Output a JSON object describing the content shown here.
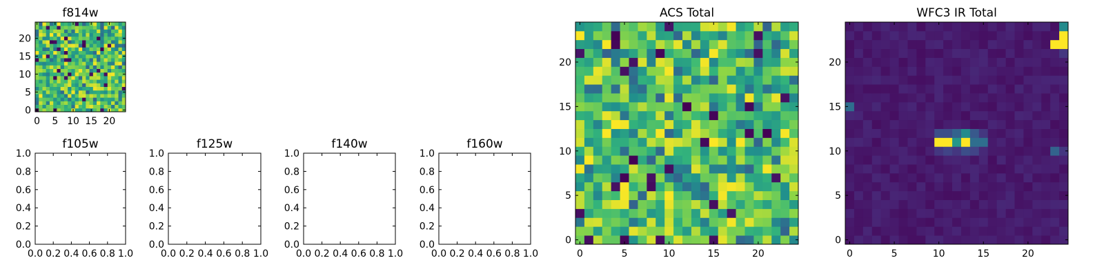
{
  "chart_data": [
    {
      "type": "heatmap",
      "title": "f814w",
      "colormap": "viridis",
      "grid": false,
      "xlim": [
        -0.5,
        24.5
      ],
      "ylim": [
        -0.5,
        24.5
      ],
      "xticks": [
        0,
        5,
        10,
        15,
        20
      ],
      "yticks": [
        0,
        5,
        10,
        15,
        20
      ],
      "xtick_labels": [
        "0",
        "5",
        "10",
        "15",
        "20"
      ],
      "ytick_labels": [
        "0",
        "5",
        "10",
        "15",
        "20"
      ],
      "grid_shape": [
        25,
        25
      ],
      "values_description": "25x25 pixel intensities, noisy and approximately uniform (mostly green-yellow, a few dark pixels)"
    },
    {
      "type": "empty",
      "title": "f105w",
      "xlim": [
        0,
        1
      ],
      "ylim": [
        0,
        1
      ],
      "xtick_labels": [
        "0.0",
        "0.2",
        "0.4",
        "0.6",
        "0.8",
        "1.0"
      ],
      "ytick_labels": [
        "0.0",
        "0.2",
        "0.4",
        "0.6",
        "0.8",
        "1.0"
      ]
    },
    {
      "type": "empty",
      "title": "f125w",
      "xlim": [
        0,
        1
      ],
      "ylim": [
        0,
        1
      ],
      "xtick_labels": [
        "0.0",
        "0.2",
        "0.4",
        "0.6",
        "0.8",
        "1.0"
      ],
      "ytick_labels": [
        "0.0",
        "0.2",
        "0.4",
        "0.6",
        "0.8",
        "1.0"
      ]
    },
    {
      "type": "empty",
      "title": "f140w",
      "xlim": [
        0,
        1
      ],
      "ylim": [
        0,
        1
      ],
      "xtick_labels": [
        "0.0",
        "0.2",
        "0.4",
        "0.6",
        "0.8",
        "1.0"
      ],
      "ytick_labels": [
        "0.0",
        "0.2",
        "0.4",
        "0.6",
        "0.8",
        "1.0"
      ]
    },
    {
      "type": "empty",
      "title": "f160w",
      "xlim": [
        0,
        1
      ],
      "ylim": [
        0,
        1
      ],
      "xtick_labels": [
        "0.0",
        "0.2",
        "0.4",
        "0.6",
        "0.8",
        "1.0"
      ],
      "ytick_labels": [
        "0.0",
        "0.2",
        "0.4",
        "0.6",
        "0.8",
        "1.0"
      ]
    },
    {
      "type": "heatmap",
      "title": "ACS Total",
      "colormap": "viridis",
      "grid": false,
      "xlim": [
        -0.5,
        24.5
      ],
      "ylim": [
        -0.5,
        24.5
      ],
      "xticks": [
        0,
        5,
        10,
        15,
        20
      ],
      "yticks": [
        0,
        5,
        10,
        15,
        20
      ],
      "xtick_labels": [
        "0",
        "5",
        "10",
        "15",
        "20"
      ],
      "ytick_labels": [
        "0",
        "5",
        "10",
        "15",
        "20"
      ],
      "grid_shape": [
        25,
        25
      ],
      "values_description": "25x25 pixel intensities, noisy and approximately uniform (mostly green-yellow, scattered dark pixels)"
    },
    {
      "type": "heatmap",
      "title": "WFC3 IR Total",
      "colormap": "viridis",
      "grid": false,
      "xlim": [
        -0.5,
        24.5
      ],
      "ylim": [
        -0.5,
        24.5
      ],
      "xticks": [
        0,
        5,
        10,
        15,
        20
      ],
      "yticks": [
        0,
        5,
        10,
        15,
        20
      ],
      "xtick_labels": [
        "0",
        "5",
        "10",
        "15",
        "20"
      ],
      "ytick_labels": [
        "0",
        "5",
        "10",
        "15",
        "20"
      ],
      "grid_shape": [
        25,
        25
      ],
      "background_level": 0.05,
      "features": [
        {
          "rows": [
            12
          ],
          "cols": [
            10,
            11,
            12,
            13,
            14,
            15
          ],
          "levels": [
            0.3,
            0.3,
            0.4,
            0.6,
            0.35,
            0.2
          ]
        },
        {
          "rows": [
            11
          ],
          "cols": [
            10,
            11,
            12,
            13,
            14,
            15
          ],
          "levels": [
            1.0,
            1.0,
            0.65,
            1.0,
            0.45,
            0.45
          ]
        },
        {
          "rows": [
            10
          ],
          "cols": [
            10,
            11,
            12,
            13,
            14,
            15
          ],
          "levels": [
            0.2,
            0.25,
            0.2,
            0.3,
            0.25,
            0.15
          ]
        },
        {
          "rows": [
            24
          ],
          "cols": [
            24
          ],
          "levels": [
            0.6
          ]
        },
        {
          "rows": [
            23
          ],
          "cols": [
            24
          ],
          "levels": [
            1.0
          ]
        },
        {
          "rows": [
            22
          ],
          "cols": [
            23,
            24
          ],
          "levels": [
            1.0,
            1.0
          ]
        },
        {
          "rows": [
            21
          ],
          "cols": [
            24
          ],
          "levels": [
            0.2
          ]
        },
        {
          "rows": [
            15
          ],
          "cols": [
            0
          ],
          "levels": [
            0.45
          ]
        },
        {
          "rows": [
            14
          ],
          "cols": [
            0
          ],
          "levels": [
            0.15
          ]
        },
        {
          "rows": [
            10
          ],
          "cols": [
            23
          ],
          "levels": [
            0.4
          ]
        },
        {
          "rows": [
            10
          ],
          "cols": [
            24
          ],
          "levels": [
            0.2
          ]
        }
      ]
    }
  ]
}
